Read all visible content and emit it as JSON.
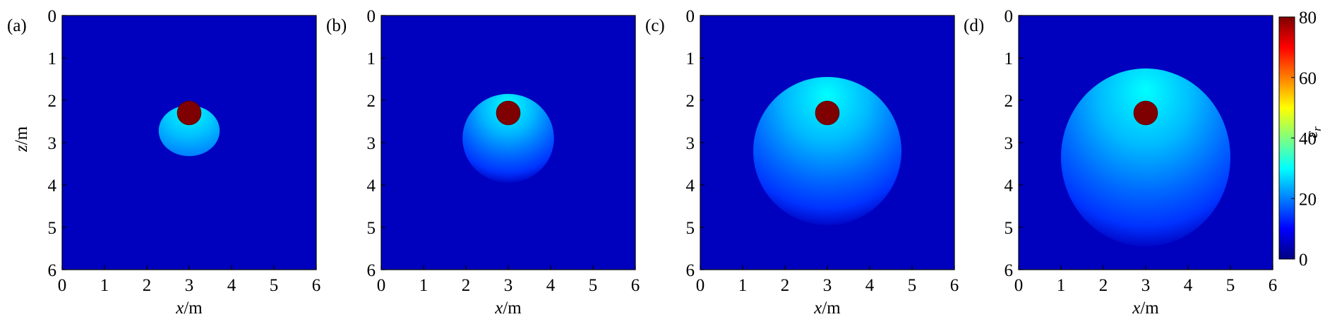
{
  "chart_data": [
    {
      "type": "heatmap",
      "panel_label": "(a)",
      "xlabel_var": "x",
      "xlabel_unit": "/m",
      "ylabel_var": "z",
      "ylabel_unit": "/m",
      "xlim": [
        0,
        6
      ],
      "ylim": [
        0,
        6
      ],
      "y_inverted": true,
      "xticks": [
        "0",
        "1",
        "2",
        "3",
        "4",
        "5",
        "6"
      ],
      "yticks": [
        "0",
        "1",
        "2",
        "3",
        "4",
        "5",
        "6"
      ],
      "background_value": 5,
      "plume": {
        "center_x": 3.0,
        "center_z": 2.72,
        "radius_x": 0.72,
        "radius_z": 0.6,
        "peak_value": 30,
        "edge_value": 20,
        "sharp_edge": true
      },
      "source": {
        "center_x": 3.0,
        "center_z": 2.3,
        "radius": 0.28,
        "value": 80
      }
    },
    {
      "type": "heatmap",
      "panel_label": "(b)",
      "xlabel_var": "x",
      "xlabel_unit": "/m",
      "ylabel_var": "",
      "ylabel_unit": "",
      "xlim": [
        0,
        6
      ],
      "ylim": [
        0,
        6
      ],
      "y_inverted": true,
      "xticks": [
        "0",
        "1",
        "2",
        "3",
        "4",
        "5",
        "6"
      ],
      "yticks": [
        "0",
        "1",
        "2",
        "3",
        "4",
        "5",
        "6"
      ],
      "background_value": 5,
      "plume": {
        "center_x": 3.0,
        "center_z": 2.9,
        "radius_x": 1.08,
        "radius_z": 1.05,
        "peak_value": 30,
        "edge_value": 8,
        "sharp_edge": false
      },
      "source": {
        "center_x": 3.0,
        "center_z": 2.3,
        "radius": 0.28,
        "value": 80
      }
    },
    {
      "type": "heatmap",
      "panel_label": "(c)",
      "xlabel_var": "x",
      "xlabel_unit": "/m",
      "ylabel_var": "",
      "ylabel_unit": "",
      "xlim": [
        0,
        6
      ],
      "ylim": [
        0,
        6
      ],
      "y_inverted": true,
      "xticks": [
        "0",
        "1",
        "2",
        "3",
        "4",
        "5",
        "6"
      ],
      "yticks": [
        "0",
        "1",
        "2",
        "3",
        "4",
        "5",
        "6"
      ],
      "background_value": 5,
      "plume": {
        "center_x": 3.0,
        "center_z": 3.2,
        "radius_x": 1.75,
        "radius_z": 1.75,
        "peak_value": 30,
        "edge_value": 8,
        "sharp_edge": false
      },
      "source": {
        "center_x": 3.0,
        "center_z": 2.3,
        "radius": 0.28,
        "value": 80
      }
    },
    {
      "type": "heatmap",
      "panel_label": "(d)",
      "xlabel_var": "x",
      "xlabel_unit": "/m",
      "ylabel_var": "",
      "ylabel_unit": "",
      "xlim": [
        0,
        6
      ],
      "ylim": [
        0,
        6
      ],
      "y_inverted": true,
      "xticks": [
        "0",
        "1",
        "2",
        "3",
        "4",
        "5",
        "6"
      ],
      "yticks": [
        "0",
        "1",
        "2",
        "3",
        "4",
        "5",
        "6"
      ],
      "background_value": 5,
      "plume": {
        "center_x": 3.0,
        "center_z": 3.35,
        "radius_x": 2.0,
        "radius_z": 2.1,
        "peak_value": 30,
        "edge_value": 8,
        "sharp_edge": false
      },
      "source": {
        "center_x": 3.0,
        "center_z": 2.3,
        "radius": 0.28,
        "value": 80
      }
    }
  ],
  "colorbar": {
    "label": "ε",
    "label_subscript": "r",
    "range": [
      0,
      80
    ],
    "ticks": [
      "0",
      "20",
      "40",
      "60",
      "80"
    ],
    "colormap": [
      "#00007f",
      "#0000ff",
      "#007fff",
      "#00ffff",
      "#7fff7f",
      "#ffff00",
      "#ff7f00",
      "#ff0000",
      "#7f0000"
    ],
    "placement": "right"
  }
}
